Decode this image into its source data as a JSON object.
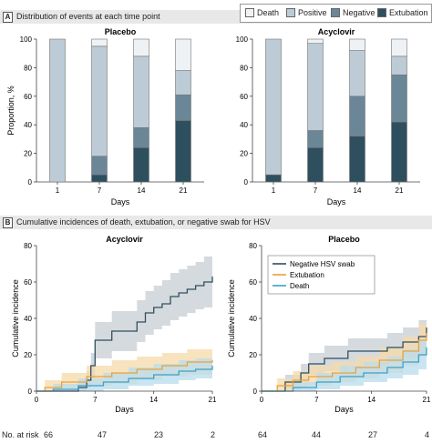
{
  "panel_a": {
    "letter": "A",
    "title": "Distribution of events at each time point"
  },
  "panel_b": {
    "letter": "B",
    "title": "Cumulative incidences of death, extubation, or negative swab for HSV"
  },
  "legend_a": [
    {
      "label": "Death",
      "color": "#eef2f5"
    },
    {
      "label": "Positive",
      "color": "#bccbd5"
    },
    {
      "label": "Negative",
      "color": "#6b8797"
    },
    {
      "label": "Extubation",
      "color": "#2e4f5e"
    }
  ],
  "at_risk": {
    "label": "No. at risk",
    "acyclovir": [
      "66",
      "47",
      "23",
      "2"
    ],
    "placebo": [
      "64",
      "44",
      "27",
      "4"
    ]
  },
  "chart_data": [
    {
      "type": "bar",
      "stacked": true,
      "title": "Placebo",
      "xlabel": "Days",
      "ylabel": "Proportion, %",
      "categories": [
        "1",
        "7",
        "14",
        "21"
      ],
      "ylim": [
        0,
        100
      ],
      "yticks": [
        0,
        20,
        40,
        60,
        80,
        100
      ],
      "series": [
        {
          "name": "Extubation",
          "values": [
            0,
            5,
            24,
            43
          ]
        },
        {
          "name": "Negative",
          "values": [
            0,
            13,
            14,
            18
          ]
        },
        {
          "name": "Positive",
          "values": [
            100,
            77,
            50,
            17
          ]
        },
        {
          "name": "Death",
          "values": [
            0,
            5,
            12,
            22
          ]
        }
      ]
    },
    {
      "type": "bar",
      "stacked": true,
      "title": "Acyclovir",
      "xlabel": "Days",
      "ylabel": "",
      "categories": [
        "1",
        "7",
        "14",
        "21"
      ],
      "ylim": [
        0,
        100
      ],
      "yticks": [
        0,
        20,
        40,
        60,
        80,
        100
      ],
      "series": [
        {
          "name": "Extubation",
          "values": [
            5,
            24,
            32,
            42
          ]
        },
        {
          "name": "Negative",
          "values": [
            0,
            12,
            28,
            33
          ]
        },
        {
          "name": "Positive",
          "values": [
            95,
            61,
            32,
            13
          ]
        },
        {
          "name": "Death",
          "values": [
            0,
            3,
            8,
            12
          ]
        }
      ]
    },
    {
      "type": "line",
      "step": true,
      "title": "Acyclovir",
      "xlabel": "Days",
      "ylabel": "Cumulative incidence",
      "xlim": [
        0,
        21
      ],
      "ylim": [
        0,
        80
      ],
      "xticks": [
        0,
        7,
        14,
        21
      ],
      "yticks": [
        0,
        20,
        40,
        60,
        80
      ],
      "series": [
        {
          "name": "Negative HSV swab",
          "color": "#2e4f5e",
          "band": "#c7ced3",
          "x": [
            0,
            5,
            6,
            6.5,
            7,
            9,
            12,
            13,
            14,
            15,
            16,
            17,
            18,
            19,
            20,
            21
          ],
          "y": [
            0,
            2,
            6,
            14,
            28,
            33,
            38,
            43,
            46,
            48,
            52,
            54,
            56,
            58,
            60,
            63
          ],
          "lo": [
            0,
            0,
            2,
            7,
            18,
            22,
            27,
            31,
            34,
            36,
            39,
            41,
            43,
            45,
            46,
            49
          ],
          "hi": [
            0,
            5,
            11,
            21,
            38,
            44,
            50,
            55,
            58,
            61,
            65,
            67,
            69,
            71,
            74,
            77
          ]
        },
        {
          "name": "Extubation",
          "color": "#e8a23c",
          "band": "#f5d9aa",
          "x": [
            0,
            1,
            3,
            6,
            9,
            12,
            15,
            18,
            21
          ],
          "y": [
            0,
            2,
            5,
            8,
            10,
            12,
            14,
            16,
            17
          ],
          "lo": [
            0,
            0,
            1,
            3,
            4,
            6,
            8,
            9,
            10
          ],
          "hi": [
            0,
            6,
            10,
            14,
            17,
            19,
            21,
            23,
            24
          ]
        },
        {
          "name": "Death",
          "color": "#3aa0c9",
          "band": "#b8dced",
          "x": [
            0,
            2,
            5,
            8,
            11,
            14,
            17,
            19,
            21
          ],
          "y": [
            0,
            1,
            3,
            5,
            7,
            9,
            11,
            12,
            14
          ],
          "lo": [
            0,
            0,
            0,
            1,
            3,
            4,
            6,
            7,
            8
          ],
          "hi": [
            0,
            4,
            7,
            10,
            13,
            15,
            17,
            18,
            20
          ]
        }
      ]
    },
    {
      "type": "line",
      "step": true,
      "title": "Placebo",
      "xlabel": "Days",
      "ylabel": "Cumulative incidence",
      "xlim": [
        0,
        21
      ],
      "ylim": [
        0,
        80
      ],
      "xticks": [
        0,
        7,
        14,
        21
      ],
      "yticks": [
        0,
        20,
        40,
        60,
        80
      ],
      "legend": [
        "Negative HSV swab",
        "Extubation",
        "Death"
      ],
      "series": [
        {
          "name": "Negative HSV swab",
          "color": "#2e4f5e",
          "band": "#c7ced3",
          "x": [
            0,
            3,
            5,
            6,
            8,
            11,
            14,
            16,
            18,
            20,
            21
          ],
          "y": [
            0,
            5,
            10,
            15,
            18,
            22,
            22,
            24,
            27,
            30,
            35
          ],
          "lo": [
            0,
            1,
            5,
            9,
            11,
            14,
            14,
            16,
            18,
            20,
            24
          ],
          "hi": [
            0,
            9,
            15,
            21,
            25,
            29,
            29,
            32,
            35,
            39,
            46
          ]
        },
        {
          "name": "Extubation",
          "color": "#e8a23c",
          "band": "#f5d9aa",
          "x": [
            0,
            2,
            4,
            6,
            9,
            12,
            15,
            18,
            20,
            21
          ],
          "y": [
            0,
            3,
            6,
            8,
            10,
            13,
            17,
            22,
            28,
            32
          ],
          "lo": [
            0,
            0,
            2,
            3,
            5,
            7,
            10,
            14,
            19,
            22
          ],
          "hi": [
            0,
            7,
            11,
            14,
            16,
            19,
            24,
            30,
            37,
            42
          ]
        },
        {
          "name": "Death",
          "color": "#3aa0c9",
          "band": "#b8dced",
          "x": [
            0,
            4,
            7,
            10,
            13,
            16,
            18,
            20,
            21
          ],
          "y": [
            0,
            2,
            5,
            8,
            10,
            13,
            16,
            20,
            24
          ],
          "lo": [
            0,
            0,
            1,
            3,
            5,
            7,
            9,
            12,
            15
          ],
          "hi": [
            0,
            5,
            10,
            14,
            16,
            19,
            23,
            28,
            33
          ]
        }
      ]
    }
  ]
}
